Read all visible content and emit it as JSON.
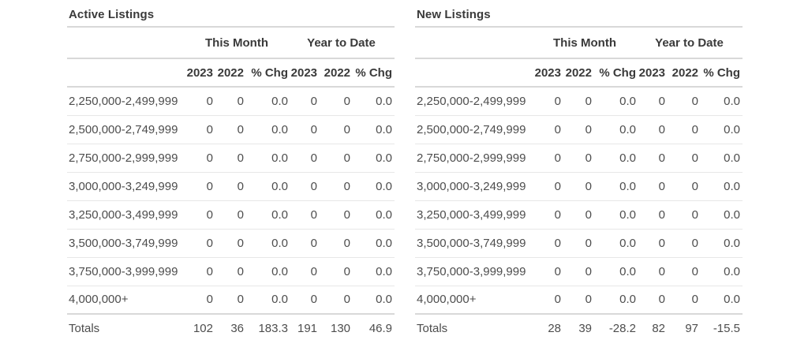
{
  "tables": [
    {
      "title": "Active Listings",
      "group_headers": [
        "This Month",
        "Year to Date"
      ],
      "column_headers": [
        "2023",
        "2022",
        "% Chg",
        "2023",
        "2022",
        "% Chg"
      ],
      "rows": [
        {
          "label": "2,250,000-2,499,999",
          "values": [
            "0",
            "0",
            "0.0",
            "0",
            "0",
            "0.0"
          ]
        },
        {
          "label": "2,500,000-2,749,999",
          "values": [
            "0",
            "0",
            "0.0",
            "0",
            "0",
            "0.0"
          ]
        },
        {
          "label": "2,750,000-2,999,999",
          "values": [
            "0",
            "0",
            "0.0",
            "0",
            "0",
            "0.0"
          ]
        },
        {
          "label": "3,000,000-3,249,999",
          "values": [
            "0",
            "0",
            "0.0",
            "0",
            "0",
            "0.0"
          ]
        },
        {
          "label": "3,250,000-3,499,999",
          "values": [
            "0",
            "0",
            "0.0",
            "0",
            "0",
            "0.0"
          ]
        },
        {
          "label": "3,500,000-3,749,999",
          "values": [
            "0",
            "0",
            "0.0",
            "0",
            "0",
            "0.0"
          ]
        },
        {
          "label": "3,750,000-3,999,999",
          "values": [
            "0",
            "0",
            "0.0",
            "0",
            "0",
            "0.0"
          ]
        },
        {
          "label": "4,000,000+",
          "values": [
            "0",
            "0",
            "0.0",
            "0",
            "0",
            "0.0"
          ]
        }
      ],
      "totals": {
        "label": "Totals",
        "values": [
          "102",
          "36",
          "183.3",
          "191",
          "130",
          "46.9"
        ]
      }
    },
    {
      "title": "New Listings",
      "group_headers": [
        "This Month",
        "Year to Date"
      ],
      "column_headers": [
        "2023",
        "2022",
        "% Chg",
        "2023",
        "2022",
        "% Chg"
      ],
      "rows": [
        {
          "label": "2,250,000-2,499,999",
          "values": [
            "0",
            "0",
            "0.0",
            "0",
            "0",
            "0.0"
          ]
        },
        {
          "label": "2,500,000-2,749,999",
          "values": [
            "0",
            "0",
            "0.0",
            "0",
            "0",
            "0.0"
          ]
        },
        {
          "label": "2,750,000-2,999,999",
          "values": [
            "0",
            "0",
            "0.0",
            "0",
            "0",
            "0.0"
          ]
        },
        {
          "label": "3,000,000-3,249,999",
          "values": [
            "0",
            "0",
            "0.0",
            "0",
            "0",
            "0.0"
          ]
        },
        {
          "label": "3,250,000-3,499,999",
          "values": [
            "0",
            "0",
            "0.0",
            "0",
            "0",
            "0.0"
          ]
        },
        {
          "label": "3,500,000-3,749,999",
          "values": [
            "0",
            "0",
            "0.0",
            "0",
            "0",
            "0.0"
          ]
        },
        {
          "label": "3,750,000-3,999,999",
          "values": [
            "0",
            "0",
            "0.0",
            "0",
            "0",
            "0.0"
          ]
        },
        {
          "label": "4,000,000+",
          "values": [
            "0",
            "0",
            "0.0",
            "0",
            "0",
            "0.0"
          ]
        }
      ],
      "totals": {
        "label": "Totals",
        "values": [
          "28",
          "39",
          "-28.2",
          "82",
          "97",
          "-15.5"
        ]
      }
    }
  ]
}
